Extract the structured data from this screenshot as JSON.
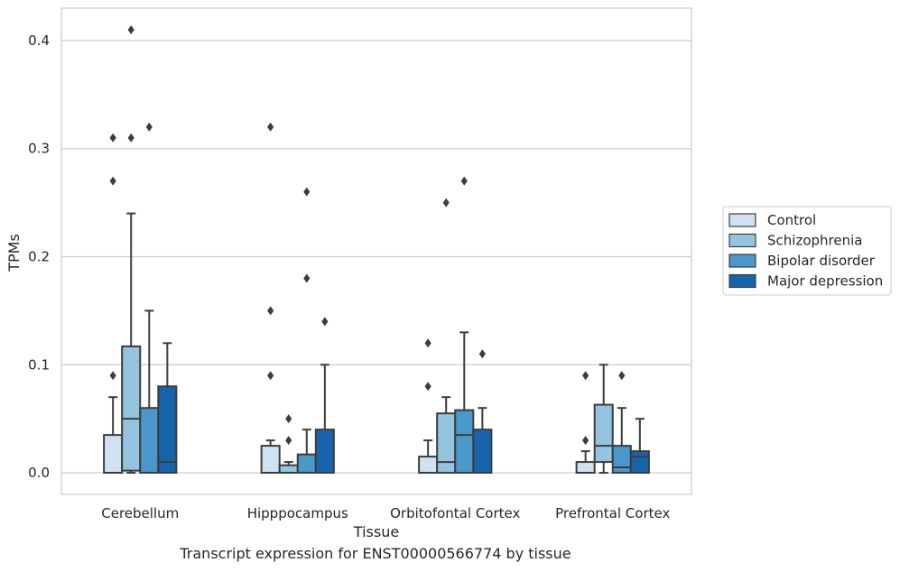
{
  "chart_data": {
    "type": "box",
    "xlabel": "Tissue",
    "ylabel": "TPMs",
    "caption": "Transcript expression for ENST00000566774 by tissue",
    "ylim": [
      -0.02,
      0.43
    ],
    "yticks": [
      0.0,
      0.1,
      0.2,
      0.3,
      0.4
    ],
    "ytick_labels": [
      "0.0",
      "0.1",
      "0.2",
      "0.3",
      "0.4"
    ],
    "grid": "horizontal",
    "legend_position": "right",
    "categories": [
      "Cerebellum",
      "Hipppocampus",
      "Orbitofontal Cortex",
      "Prefrontal Cortex"
    ],
    "series": [
      {
        "name": "Control",
        "color": "#d0e1f2",
        "boxes": [
          {
            "q1": 0.0,
            "median": 0.0,
            "q3": 0.035,
            "whisker_low": 0.0,
            "whisker_high": 0.07,
            "outliers": [
              0.09,
              0.27,
              0.31
            ]
          },
          {
            "q1": 0.0,
            "median": 0.0,
            "q3": 0.025,
            "whisker_low": 0.0,
            "whisker_high": 0.03,
            "outliers": [
              0.09,
              0.15,
              0.32
            ]
          },
          {
            "q1": 0.0,
            "median": 0.0,
            "q3": 0.015,
            "whisker_low": 0.0,
            "whisker_high": 0.03,
            "outliers": [
              0.08,
              0.12
            ]
          },
          {
            "q1": 0.0,
            "median": 0.0,
            "q3": 0.01,
            "whisker_low": 0.0,
            "whisker_high": 0.02,
            "outliers": [
              0.03,
              0.09
            ]
          }
        ]
      },
      {
        "name": "Schizophrenia",
        "color": "#94c4df",
        "boxes": [
          {
            "q1": 0.002,
            "median": 0.05,
            "q3": 0.117,
            "whisker_low": 0.0,
            "whisker_high": 0.24,
            "outliers": [
              0.31,
              0.41
            ]
          },
          {
            "q1": 0.0,
            "median": 0.0,
            "q3": 0.007,
            "whisker_low": 0.0,
            "whisker_high": 0.01,
            "outliers": [
              0.03,
              0.05
            ]
          },
          {
            "q1": 0.0,
            "median": 0.01,
            "q3": 0.055,
            "whisker_low": 0.0,
            "whisker_high": 0.07,
            "outliers": [
              0.25
            ]
          },
          {
            "q1": 0.01,
            "median": 0.025,
            "q3": 0.063,
            "whisker_low": 0.0,
            "whisker_high": 0.1,
            "outliers": []
          }
        ]
      },
      {
        "name": "Bipolar disorder",
        "color": "#4a98c9",
        "boxes": [
          {
            "q1": 0.0,
            "median": 0.0,
            "q3": 0.06,
            "whisker_low": 0.0,
            "whisker_high": 0.15,
            "outliers": [
              0.32
            ]
          },
          {
            "q1": 0.0,
            "median": 0.0,
            "q3": 0.017,
            "whisker_low": 0.0,
            "whisker_high": 0.04,
            "outliers": [
              0.18,
              0.26
            ]
          },
          {
            "q1": 0.0,
            "median": 0.035,
            "q3": 0.058,
            "whisker_low": 0.0,
            "whisker_high": 0.13,
            "outliers": [
              0.27
            ]
          },
          {
            "q1": 0.0,
            "median": 0.005,
            "q3": 0.025,
            "whisker_low": 0.0,
            "whisker_high": 0.06,
            "outliers": [
              0.09
            ]
          }
        ]
      },
      {
        "name": "Major depression",
        "color": "#1764ab",
        "boxes": [
          {
            "q1": 0.0,
            "median": 0.01,
            "q3": 0.08,
            "whisker_low": 0.0,
            "whisker_high": 0.12,
            "outliers": []
          },
          {
            "q1": 0.0,
            "median": 0.0,
            "q3": 0.04,
            "whisker_low": 0.0,
            "whisker_high": 0.1,
            "outliers": [
              0.14
            ]
          },
          {
            "q1": 0.0,
            "median": 0.0,
            "q3": 0.04,
            "whisker_low": 0.0,
            "whisker_high": 0.06,
            "outliers": [
              0.11
            ]
          },
          {
            "q1": 0.0,
            "median": 0.015,
            "q3": 0.02,
            "whisker_low": 0.0,
            "whisker_high": 0.05,
            "outliers": []
          }
        ]
      }
    ]
  }
}
